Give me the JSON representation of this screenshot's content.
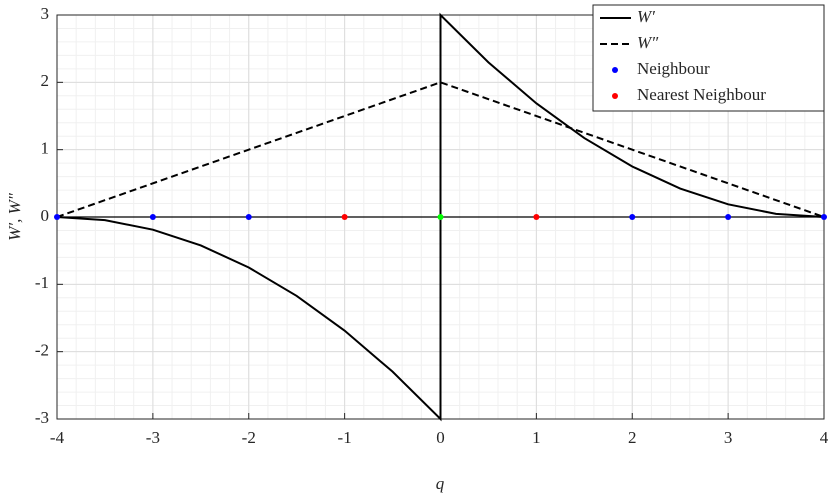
{
  "chart_data": {
    "type": "line",
    "xlabel": "q",
    "ylabel": "W′, W″",
    "xlim": [
      -4,
      4
    ],
    "ylim": [
      -3,
      3
    ],
    "xticks": [
      -4,
      -3,
      -2,
      -1,
      0,
      1,
      2,
      3,
      4
    ],
    "yticks": [
      -3,
      -2,
      -1,
      0,
      1,
      2,
      3
    ],
    "grid": true,
    "minor_grid": true,
    "legend": "upper right",
    "series": [
      {
        "name": "W′",
        "color": "#000000",
        "style": "solid",
        "x": [
          -4,
          -3.5,
          -3,
          -2.5,
          -2,
          -1.5,
          -1,
          -0.5,
          0,
          0,
          0.5,
          1,
          1.5,
          2,
          2.5,
          3,
          3.5,
          4
        ],
        "values": [
          0,
          -0.047,
          -0.188,
          -0.422,
          -0.75,
          -1.172,
          -1.688,
          -2.297,
          -3,
          3,
          2.297,
          1.688,
          1.172,
          0.75,
          0.422,
          0.188,
          0.047,
          0
        ]
      },
      {
        "name": "W″",
        "color": "#000000",
        "style": "dashed",
        "x": [
          -4,
          0,
          4
        ],
        "values": [
          0,
          2,
          0
        ]
      },
      {
        "color": "#000000",
        "style": "thin",
        "x": [
          -4,
          4
        ],
        "values": [
          0,
          0
        ]
      },
      {
        "name": "Neighbour",
        "color": "#0000ff",
        "style": "marker",
        "x": [
          -4,
          -3,
          -2,
          2,
          3,
          4
        ],
        "values": [
          0,
          0,
          0,
          0,
          0,
          0
        ]
      },
      {
        "name": "Nearest Neighbour",
        "color": "#ff0000",
        "style": "marker",
        "x": [
          -1,
          1
        ],
        "values": [
          0,
          0
        ]
      },
      {
        "color": "#00ff00",
        "style": "marker",
        "x": [
          0
        ],
        "values": [
          0
        ]
      }
    ]
  }
}
